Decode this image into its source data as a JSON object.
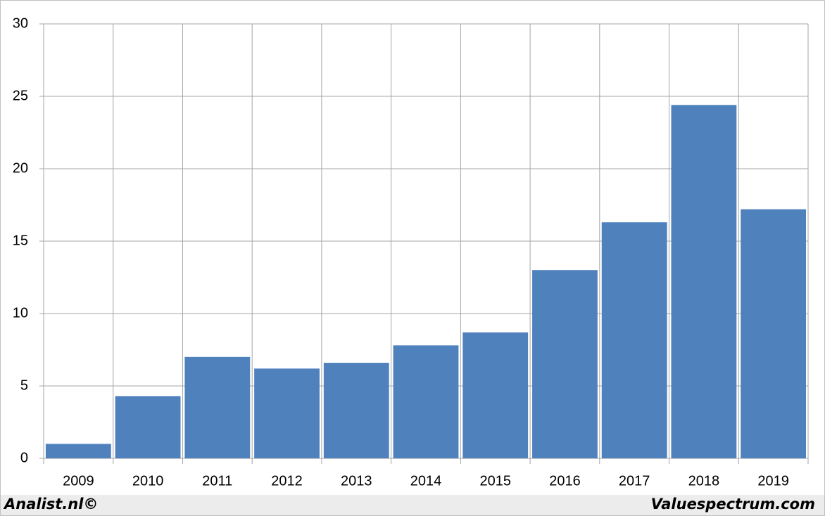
{
  "chart_data": {
    "type": "bar",
    "categories": [
      "2009",
      "2010",
      "2011",
      "2012",
      "2013",
      "2014",
      "2015",
      "2016",
      "2017",
      "2018",
      "2019"
    ],
    "values": [
      1.0,
      4.3,
      7.0,
      6.2,
      6.6,
      7.8,
      8.7,
      13.0,
      16.3,
      24.4,
      17.2
    ],
    "color": "#4f81bd",
    "ylim": [
      0,
      30
    ],
    "yticks": [
      0,
      5,
      10,
      15,
      20,
      25,
      30
    ],
    "grid": true,
    "footer_left": "Analist.nl©",
    "footer_right": "Valuespectrum.com"
  }
}
